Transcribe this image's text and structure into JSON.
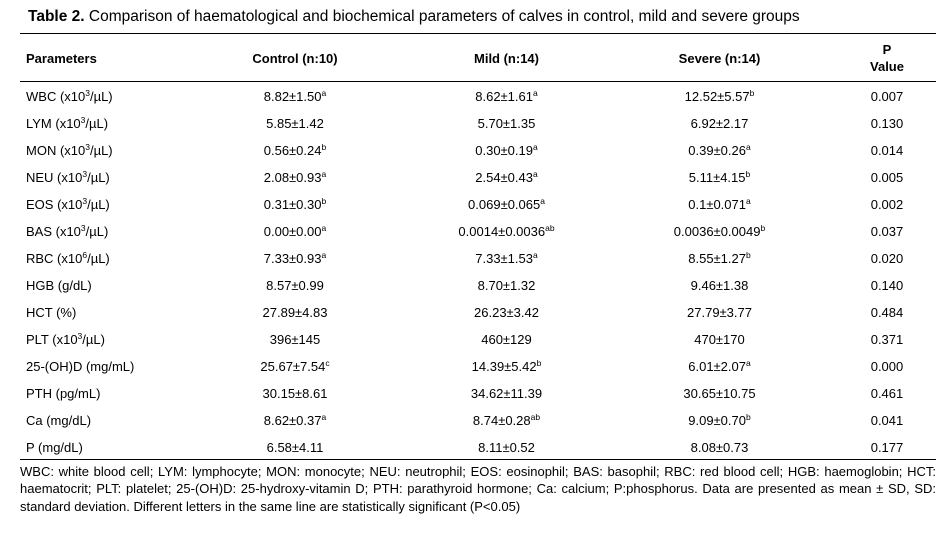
{
  "table": {
    "caption_label": "Table 2.",
    "caption_text": "Comparison of haematological and biochemical parameters of calves in control, mild and severe groups",
    "headers": {
      "parameters": "Parameters",
      "control": "Control (n:10)",
      "mild": "Mild (n:14)",
      "severe": "Severe (n:14)",
      "p_line1": "P",
      "p_line2": "Value"
    },
    "rows": [
      {
        "param": {
          "pre": "WBC (x10",
          "sup": "3",
          "post": "/µL)"
        },
        "control": {
          "v": "8.82±1.50",
          "s": "a"
        },
        "mild": {
          "v": "8.62±1.61",
          "s": "a"
        },
        "severe": {
          "v": "12.52±5.57",
          "s": "b"
        },
        "p": "0.007"
      },
      {
        "param": {
          "pre": "LYM (x10",
          "sup": "3",
          "post": "/µL)"
        },
        "control": {
          "v": "5.85±1.42",
          "s": ""
        },
        "mild": {
          "v": "5.70±1.35",
          "s": ""
        },
        "severe": {
          "v": "6.92±2.17",
          "s": ""
        },
        "p": "0.130"
      },
      {
        "param": {
          "pre": "MON (x10",
          "sup": "3",
          "post": "/µL)"
        },
        "control": {
          "v": "0.56±0.24",
          "s": "b"
        },
        "mild": {
          "v": "0.30±0.19",
          "s": "a"
        },
        "severe": {
          "v": "0.39±0.26",
          "s": "a"
        },
        "p": "0.014"
      },
      {
        "param": {
          "pre": "NEU (x10",
          "sup": "3",
          "post": "/µL)"
        },
        "control": {
          "v": "2.08±0.93",
          "s": "a"
        },
        "mild": {
          "v": "2.54±0.43",
          "s": "a"
        },
        "severe": {
          "v": "5.11±4.15",
          "s": "b"
        },
        "p": "0.005"
      },
      {
        "param": {
          "pre": "EOS (x10",
          "sup": "3",
          "post": "/µL)"
        },
        "control": {
          "v": "0.31±0.30",
          "s": "b"
        },
        "mild": {
          "v": "0.069±0.065",
          "s": "a"
        },
        "severe": {
          "v": "0.1±0.071",
          "s": "a"
        },
        "p": "0.002"
      },
      {
        "param": {
          "pre": "BAS (x10",
          "sup": "3",
          "post": "/µL)"
        },
        "control": {
          "v": "0.00±0.00",
          "s": "a"
        },
        "mild": {
          "v": "0.0014±0.0036",
          "s": "ab"
        },
        "severe": {
          "v": "0.0036±0.0049",
          "s": "b"
        },
        "p": "0.037"
      },
      {
        "param": {
          "pre": "RBC (x10",
          "sup": "6",
          "post": "/µL)"
        },
        "control": {
          "v": "7.33±0.93",
          "s": "a"
        },
        "mild": {
          "v": "7.33±1.53",
          "s": "a"
        },
        "severe": {
          "v": "8.55±1.27",
          "s": "b"
        },
        "p": "0.020"
      },
      {
        "param": {
          "pre": "HGB (g/dL)",
          "sup": "",
          "post": ""
        },
        "control": {
          "v": "8.57±0.99",
          "s": ""
        },
        "mild": {
          "v": "8.70±1.32",
          "s": ""
        },
        "severe": {
          "v": "9.46±1.38",
          "s": ""
        },
        "p": "0.140"
      },
      {
        "param": {
          "pre": "HCT (%)",
          "sup": "",
          "post": ""
        },
        "control": {
          "v": "27.89±4.83",
          "s": ""
        },
        "mild": {
          "v": "26.23±3.42",
          "s": ""
        },
        "severe": {
          "v": "27.79±3.77",
          "s": ""
        },
        "p": "0.484"
      },
      {
        "param": {
          "pre": "PLT (x10",
          "sup": "3",
          "post": "/µL)"
        },
        "control": {
          "v": "396±145",
          "s": ""
        },
        "mild": {
          "v": "460±129",
          "s": ""
        },
        "severe": {
          "v": "470±170",
          "s": ""
        },
        "p": "0.371"
      },
      {
        "param": {
          "pre": "25-(OH)D (mg/mL)",
          "sup": "",
          "post": ""
        },
        "control": {
          "v": "25.67±7.54",
          "s": "c"
        },
        "mild": {
          "v": "14.39±5.42",
          "s": "b"
        },
        "severe": {
          "v": "6.01±2.07",
          "s": "a"
        },
        "p": "0.000"
      },
      {
        "param": {
          "pre": "PTH (pg/mL)",
          "sup": "",
          "post": ""
        },
        "control": {
          "v": "30.15±8.61",
          "s": ""
        },
        "mild": {
          "v": "34.62±11.39",
          "s": ""
        },
        "severe": {
          "v": "30.65±10.75",
          "s": ""
        },
        "p": "0.461"
      },
      {
        "param": {
          "pre": "Ca (mg/dL)",
          "sup": "",
          "post": ""
        },
        "control": {
          "v": "8.62±0.37",
          "s": "a"
        },
        "mild": {
          "v": "8.74±0.28",
          "s": "ab"
        },
        "severe": {
          "v": "9.09±0.70",
          "s": "b"
        },
        "p": "0.041"
      },
      {
        "param": {
          "pre": "P (mg/dL)",
          "sup": "",
          "post": ""
        },
        "control": {
          "v": "6.58±4.11",
          "s": ""
        },
        "mild": {
          "v": "8.11±0.52",
          "s": ""
        },
        "severe": {
          "v": "8.08±0.73",
          "s": ""
        },
        "p": "0.177"
      }
    ],
    "footnote": "WBC: white blood cell; LYM: lymphocyte; MON: monocyte; NEU: neutrophil; EOS: eosinophil; BAS: basophil; RBC: red blood cell; HGB: haemoglobin; HCT: haematocrit; PLT: platelet; 25-(OH)D: 25-hydroxy-vitamin D; PTH: parathyroid hormone; Ca: calcium; P:phosphorus. Data are presented as mean ± SD, SD: standard deviation. Different letters in the same line are statistically significant (P<0.05)"
  }
}
